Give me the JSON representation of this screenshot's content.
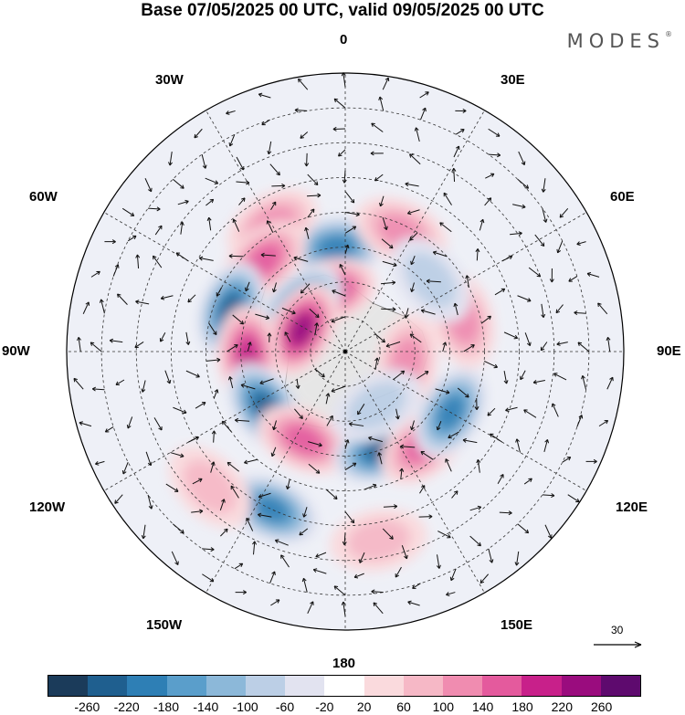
{
  "title": "Base 07/05/2025 00 UTC, valid 09/05/2025 00 UTC",
  "brand": "MODES",
  "brand_mark": "®",
  "map_labels": {
    "lon_0": "0",
    "lon_30e": "30E",
    "lon_60e": "60E",
    "lon_90e": "90E",
    "lon_120e": "120E",
    "lon_150e": "150E",
    "lon_180": "180",
    "lon_150w": "150W",
    "lon_120w": "120W",
    "lon_90w": "90W",
    "lon_60w": "60W",
    "lon_30w": "30W"
  },
  "vector_reference": "30",
  "colorbar": {
    "colors": [
      "#1b3b5a",
      "#1f5f8f",
      "#2e7fb5",
      "#5a9ecb",
      "#8cb8d9",
      "#bccfe6",
      "#e2e3f0",
      "#ffffff",
      "#fadadd",
      "#f6b8c6",
      "#f08cb0",
      "#e45a9d",
      "#c8208a",
      "#9a0c7e",
      "#5e0a6e"
    ],
    "ticks": [
      "-260",
      "-220",
      "-180",
      "-140",
      "-100",
      "-60",
      "-20",
      "20",
      "60",
      "100",
      "140",
      "180",
      "220",
      "260"
    ]
  },
  "anomalies": [
    {
      "lon": 355,
      "lat": -60,
      "value": -200
    },
    {
      "lon": 330,
      "lat": -48,
      "value": 120
    },
    {
      "lon": 318,
      "lat": -55,
      "value": 160
    },
    {
      "lon": 25,
      "lat": -52,
      "value": 100
    },
    {
      "lon": 345,
      "lat": -72,
      "value": 200
    },
    {
      "lon": 315,
      "lat": -72,
      "value": -240
    },
    {
      "lon": 290,
      "lat": -55,
      "value": -240
    },
    {
      "lon": 297,
      "lat": -76,
      "value": 230
    },
    {
      "lon": 268,
      "lat": -62,
      "value": 180
    },
    {
      "lon": 235,
      "lat": -62,
      "value": -230
    },
    {
      "lon": 205,
      "lat": -62,
      "value": 160
    },
    {
      "lon": 160,
      "lat": -60,
      "value": -240
    },
    {
      "lon": 140,
      "lat": -55,
      "value": 150
    },
    {
      "lon": 120,
      "lat": -55,
      "value": -180
    },
    {
      "lon": 100,
      "lat": -72,
      "value": 120
    },
    {
      "lon": 75,
      "lat": -55,
      "value": 90
    },
    {
      "lon": 50,
      "lat": -58,
      "value": -80
    },
    {
      "lon": 205,
      "lat": -40,
      "value": -200
    },
    {
      "lon": 170,
      "lat": -35,
      "value": 60
    },
    {
      "lon": 225,
      "lat": -35,
      "value": 60
    },
    {
      "lon": 150,
      "lat": -72,
      "value": -80
    }
  ]
}
